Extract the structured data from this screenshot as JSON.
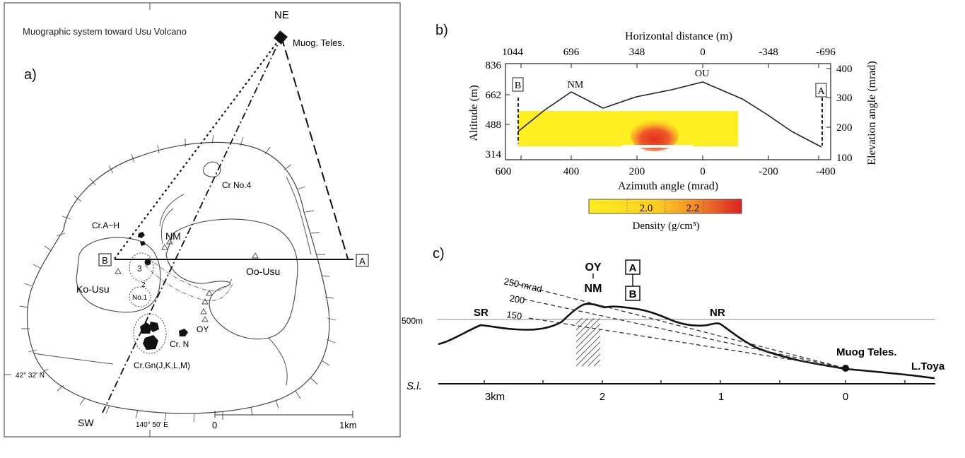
{
  "panel_a": {
    "label": "a)",
    "title": "Muographic system toward Usu Volcano",
    "ne": "NE",
    "sw": "SW",
    "telescope": "Muog. Teles.",
    "cr_no4": "Cr No.4",
    "cr_ah": "Cr.A~H",
    "nm": "NM",
    "point_a": "A",
    "point_b": "B",
    "oo_usu": "Oo-Usu",
    "ko_usu": "Ko-Usu",
    "no1": "No.1",
    "num3": "3",
    "num2": "2",
    "oy": "OY",
    "cr_n": "Cr. N",
    "cr_gn": "Cr.Gn(J,K,L,M)",
    "lat": "42° 32' N",
    "lon": "140° 50' E",
    "scale_start": "0",
    "scale_end": "1km"
  },
  "panel_b": {
    "label": "b)",
    "top_axis_title": "Horizontal distance (m)",
    "top_ticks": [
      "1044",
      "696",
      "348",
      "0",
      "-348",
      "-696"
    ],
    "left_axis_title": "Altitude (m)",
    "left_ticks": [
      "836",
      "662",
      "488",
      "314"
    ],
    "right_axis_title": "Elevation angle (mrad)",
    "right_ticks": [
      "400",
      "300",
      "200",
      "100"
    ],
    "bottom_axis_title": "Azimuth angle (mrad)",
    "bottom_ticks": [
      "600",
      "400",
      "200",
      "0",
      "-200",
      "-400"
    ],
    "peak_nm": "NM",
    "peak_ou": "OU",
    "box_b": "B",
    "box_a": "A",
    "colorbar_labels": [
      "2.0",
      "2.2"
    ],
    "colorbar_title": "Density (g/cm³)",
    "colors": {
      "low": "#ffee22",
      "high": "#dd2222"
    }
  },
  "panel_c": {
    "label": "c)",
    "oy": "OY",
    "nm": "NM",
    "box_a": "A",
    "box_b": "B",
    "mrad_250": "250 mrad",
    "mrad_200": "200",
    "mrad_150": "150",
    "level_500": "500m",
    "sr": "SR",
    "nr": "NR",
    "telescope": "Muog Teles.",
    "lake": "L.Toya",
    "sl": "S.l.",
    "x_ticks": [
      "3km",
      "2",
      "1",
      "0"
    ]
  }
}
